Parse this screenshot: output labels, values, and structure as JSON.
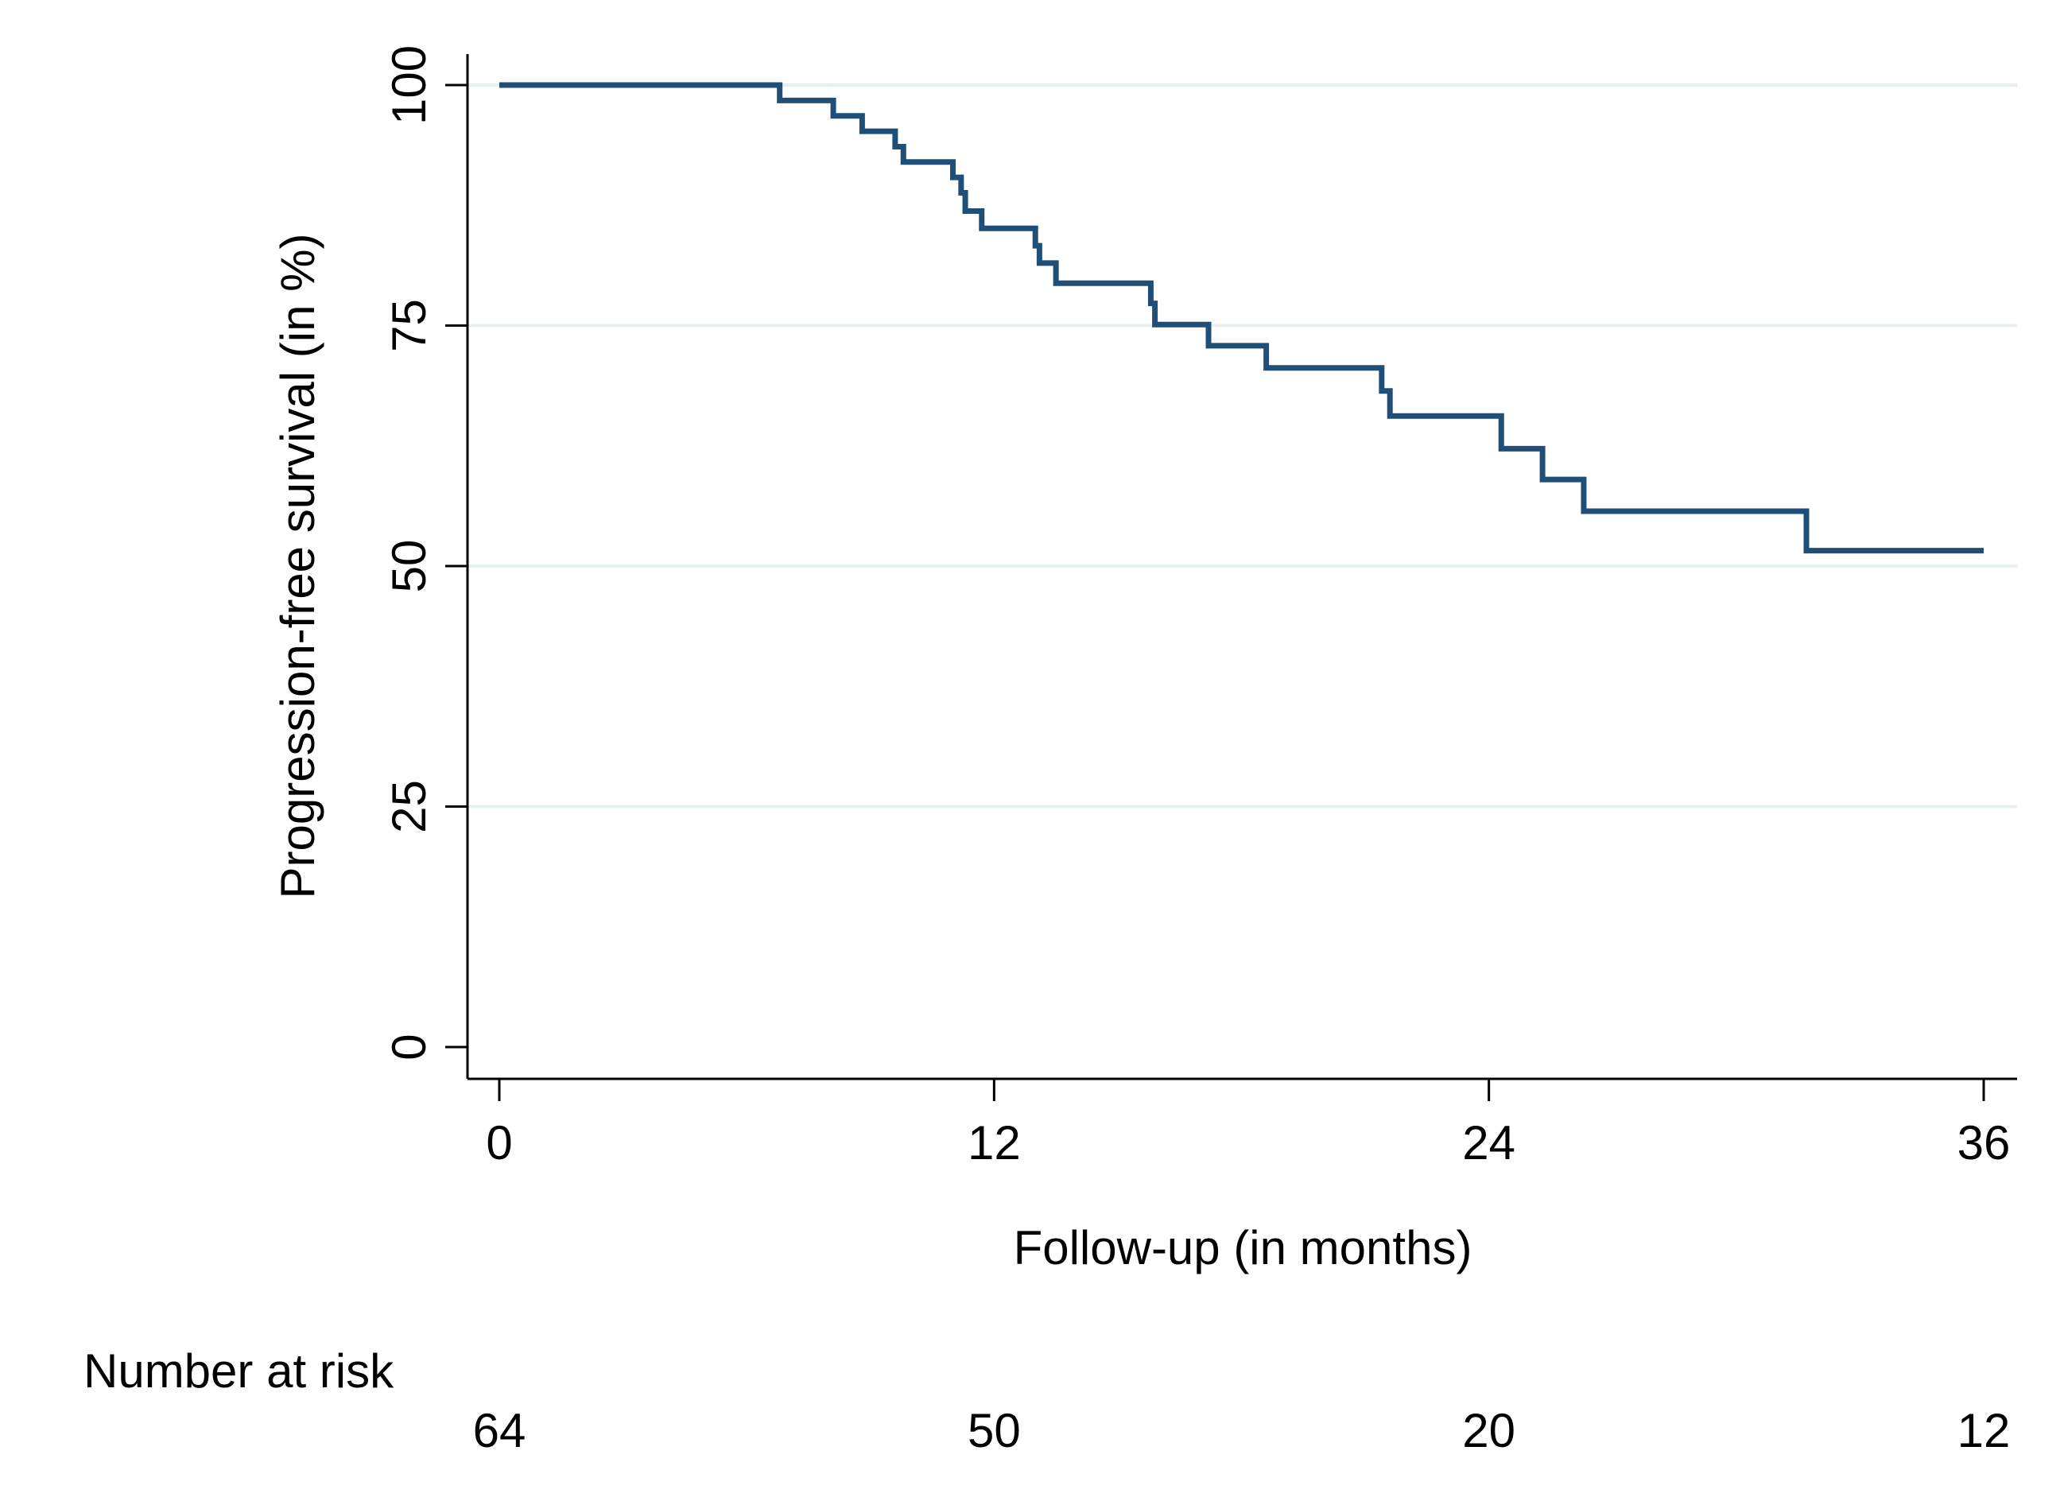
{
  "chart_data": {
    "type": "line",
    "subtype": "kaplan-meier-step",
    "ylabel": "Progression-free survival (in %)",
    "xlabel": "Follow-up (in months)",
    "xlim": [
      0,
      36
    ],
    "ylim": [
      0,
      100
    ],
    "x_ticks": [
      0,
      12,
      24,
      36
    ],
    "y_ticks": [
      0,
      25,
      50,
      75,
      100
    ],
    "grid": "horizontal",
    "colors": {
      "line": "#1f4e79",
      "grid": "#e8efef",
      "axis": "#000000"
    },
    "series": [
      {
        "x": [
          0,
          6.8,
          8.1,
          8.8,
          9.6,
          9.8,
          11.0,
          11.2,
          11.3,
          11.7,
          13.0,
          13.1,
          13.5,
          15.8,
          15.9,
          17.2,
          18.6,
          21.4,
          21.6,
          24.3,
          25.3,
          26.3,
          31.7,
          36.0
        ],
        "y": [
          100,
          98.4,
          96.8,
          95.2,
          93.6,
          92.0,
          90.4,
          88.8,
          86.9,
          85.1,
          83.3,
          81.5,
          79.4,
          77.3,
          75.1,
          72.9,
          70.6,
          68.2,
          65.6,
          62.2,
          59.0,
          55.7,
          51.6,
          51.6
        ]
      }
    ],
    "risk_table": {
      "title": "Number at risk",
      "times": [
        0,
        12,
        24,
        36
      ],
      "counts": [
        "64",
        "50",
        "20",
        "12"
      ]
    }
  }
}
